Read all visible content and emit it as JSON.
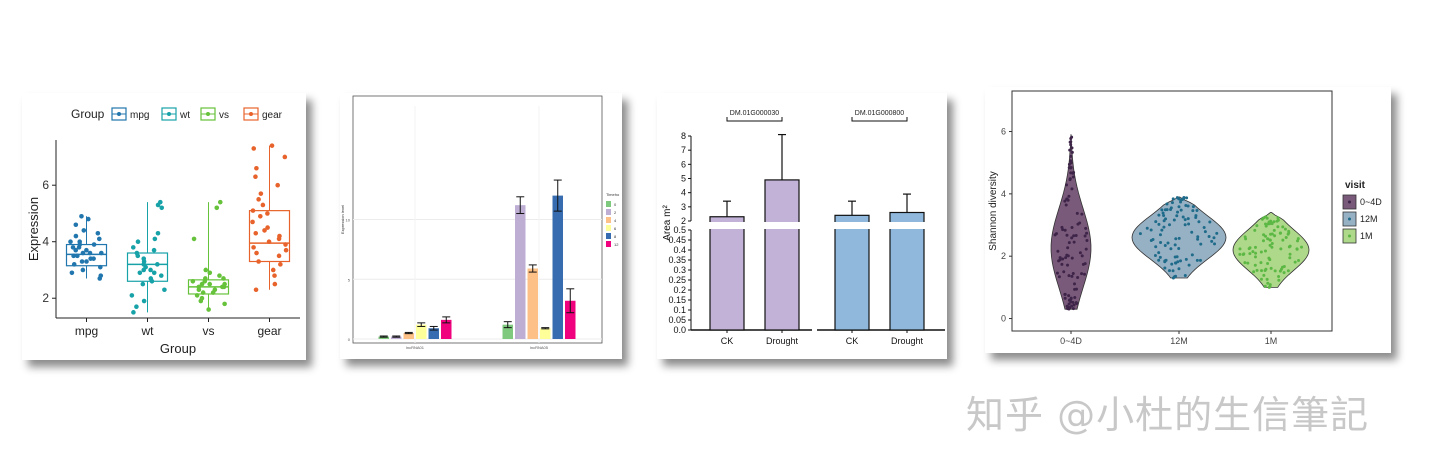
{
  "watermark": "知乎 @小杜的生信筆記",
  "chart_data": [
    {
      "type": "boxplot",
      "legend_title": "Group",
      "legend_placement": "top",
      "xlabel": "Group",
      "ylabel": "Expression",
      "ylim": [
        1.3,
        7.6
      ],
      "yticks": [
        2,
        4,
        6
      ],
      "categories": [
        "mpg",
        "wt",
        "vs",
        "gear"
      ],
      "colors": [
        "#2176ae",
        "#17a2a8",
        "#66c23a",
        "#e8632b"
      ],
      "boxes": [
        {
          "q1": 3.15,
          "median": 3.55,
          "q3": 3.9,
          "low": 2.7,
          "high": 4.9
        },
        {
          "q1": 2.6,
          "median": 3.2,
          "q3": 3.6,
          "low": 1.5,
          "high": 5.4
        },
        {
          "q1": 2.15,
          "median": 2.4,
          "q3": 2.65,
          "low": 1.6,
          "high": 5.4
        },
        {
          "q1": 3.3,
          "median": 3.95,
          "q3": 5.1,
          "low": 2.3,
          "high": 7.4
        }
      ],
      "points": [
        [
          2.7,
          2.8,
          2.9,
          3.0,
          3.1,
          3.2,
          3.3,
          3.3,
          3.4,
          3.5,
          3.5,
          3.6,
          3.6,
          3.7,
          3.7,
          3.8,
          3.8,
          3.9,
          3.9,
          4.0,
          4.0,
          4.1,
          4.2,
          4.3,
          4.4,
          4.6,
          4.8,
          4.9,
          3.4,
          3.6
        ],
        [
          1.5,
          1.7,
          1.9,
          2.1,
          2.3,
          2.5,
          2.6,
          2.7,
          2.8,
          2.9,
          3.0,
          3.1,
          3.2,
          3.2,
          3.3,
          3.4,
          3.5,
          3.6,
          3.7,
          3.8,
          4.0,
          4.1,
          4.3,
          5.2,
          5.4,
          5.3,
          2.9,
          3.0
        ],
        [
          1.6,
          1.8,
          1.9,
          2.0,
          2.1,
          2.2,
          2.2,
          2.3,
          2.3,
          2.4,
          2.4,
          2.5,
          2.5,
          2.6,
          2.6,
          2.7,
          2.7,
          2.8,
          2.9,
          3.0,
          4.1,
          5.2,
          5.4,
          2.4,
          2.5
        ],
        [
          2.3,
          2.5,
          2.8,
          3.0,
          3.2,
          3.3,
          3.5,
          3.6,
          3.7,
          3.8,
          3.9,
          4.0,
          4.1,
          4.2,
          4.3,
          4.5,
          4.7,
          4.9,
          5.0,
          5.1,
          5.3,
          5.5,
          5.7,
          6.0,
          6.3,
          6.6,
          7.0,
          7.4,
          7.3,
          4.4
        ]
      ]
    },
    {
      "type": "bar",
      "ylabel": "Expression level",
      "legend_title": "Timeho",
      "categories": [
        "lncRNA01",
        "lncRNA05"
      ],
      "ylim": [
        0,
        20
      ],
      "yticks": [
        0,
        5,
        10
      ],
      "series": [
        {
          "name": "0",
          "color": "#7fc97f",
          "values": [
            0.2,
            1.2
          ],
          "err": [
            0.05,
            0.25
          ]
        },
        {
          "name": "2",
          "color": "#beaed4",
          "values": [
            0.2,
            11.2
          ],
          "err": [
            0.05,
            0.7
          ]
        },
        {
          "name": "4",
          "color": "#fdc086",
          "values": [
            0.5,
            5.9
          ],
          "err": [
            0.05,
            0.3
          ]
        },
        {
          "name": "6",
          "color": "#ffff99",
          "values": [
            1.2,
            0.9
          ],
          "err": [
            0.15,
            0.05
          ]
        },
        {
          "name": "8",
          "color": "#386cb0",
          "values": [
            0.9,
            12.0
          ],
          "err": [
            0.15,
            1.3
          ]
        },
        {
          "name": "12",
          "color": "#f0027f",
          "values": [
            1.6,
            3.2
          ],
          "err": [
            0.25,
            1.0
          ]
        }
      ]
    },
    {
      "type": "bar",
      "ylabel": "Area m²",
      "categories": [
        "CK",
        "Drought"
      ],
      "yticks_lower": [
        0.0,
        0.05,
        0.1,
        0.15,
        0.2,
        0.25,
        0.3,
        0.35,
        0.4,
        0.45,
        0.5
      ],
      "yticks_lower_labels": [
        "0.0",
        "0.05",
        "0.1",
        "0.15",
        "0.2",
        "0.25",
        "0.3",
        "0.35",
        "0.4",
        "0.45",
        "0.5"
      ],
      "yticks_upper": [
        2,
        3,
        4,
        5,
        6,
        7,
        8
      ],
      "groups": [
        {
          "title": "DM.01G000030",
          "color": "#c2b2d8",
          "values": [
            2.3,
            4.9
          ],
          "err": [
            1.1,
            3.2
          ]
        },
        {
          "title": "DM.01G000800",
          "color": "#8fb8dc",
          "values": [
            2.4,
            2.6
          ],
          "err": [
            1.0,
            1.3
          ]
        }
      ]
    },
    {
      "type": "violin",
      "ylabel": "Shannon diversity",
      "legend_title": "visit",
      "ylim": [
        -0.4,
        7.3
      ],
      "yticks": [
        0,
        2,
        4,
        6
      ],
      "categories": [
        "0~4D",
        "12M",
        "1M"
      ],
      "fill_colors": [
        "#7a5a7a",
        "#97b1c4",
        "#aed88a"
      ],
      "point_colors": [
        "#3d2448",
        "#1f6b8a",
        "#5cb844"
      ],
      "ranges": [
        [
          0.3,
          5.9
        ],
        [
          1.3,
          3.9
        ],
        [
          1.0,
          3.4
        ]
      ]
    }
  ]
}
